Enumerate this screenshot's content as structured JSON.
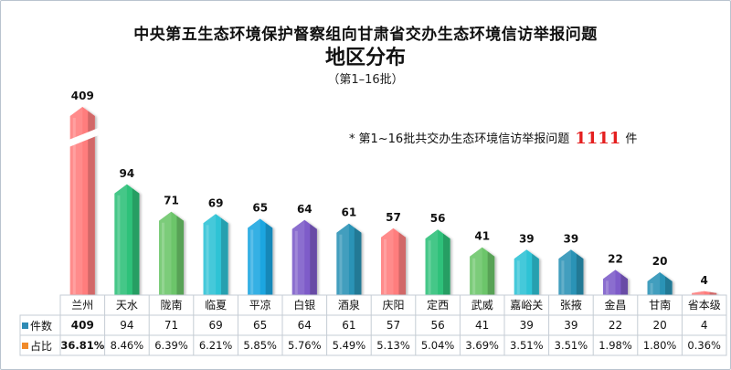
{
  "title_line1": "中央第五生态环境保护督察组向甘肃省交办生态环境信访举报问题",
  "title_line2": "地区分布",
  "title_line3": "（第1–16批）",
  "note": {
    "prefix": "*",
    "text_before": "第1~16批共交办生态环境信访举报问题",
    "total": "1111",
    "text_after": "件"
  },
  "table": {
    "row1_label": "件数",
    "row2_label": "占比",
    "row1_marker_color": "#2e8bb5",
    "row2_marker_color": "#f08a2a"
  },
  "chart_data": {
    "type": "bar",
    "title": "地区分布",
    "axis_break_on_first_bar": true,
    "categories": [
      "兰州",
      "天水",
      "陇南",
      "临夏",
      "平凉",
      "白银",
      "酒泉",
      "庆阳",
      "定西",
      "武威",
      "嘉峪关",
      "张掖",
      "金昌",
      "甘南",
      "省本级"
    ],
    "series": [
      {
        "name": "件数",
        "values": [
          409,
          94,
          71,
          69,
          65,
          64,
          61,
          57,
          56,
          41,
          39,
          39,
          22,
          20,
          4
        ]
      },
      {
        "name": "占比",
        "values": [
          "36.81%",
          "8.46%",
          "6.39%",
          "6.21%",
          "5.85%",
          "5.76%",
          "5.49%",
          "5.13%",
          "5.04%",
          "3.69%",
          "3.51%",
          "3.51%",
          "1.98%",
          "1.80%",
          "0.36%"
        ]
      }
    ],
    "bar_colors": [
      "#ff7d7d",
      "#2fc17a",
      "#6cc56a",
      "#2ec3d5",
      "#1ea6e0",
      "#7e5cc9",
      "#2c93b6",
      "#ff7d7d",
      "#2fc17a",
      "#6cc56a",
      "#2ec3d5",
      "#2c93b6",
      "#7e5cc9",
      "#2c93b6",
      "#ff7d7d"
    ]
  }
}
